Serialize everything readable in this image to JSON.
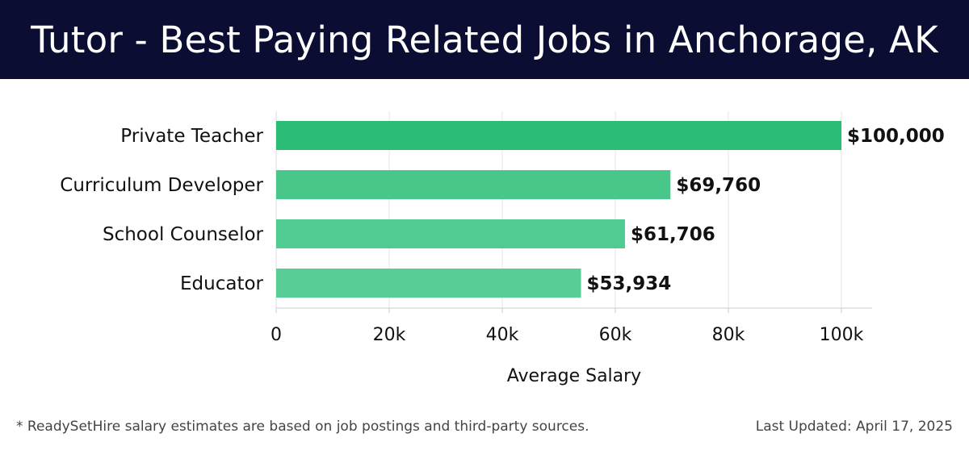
{
  "header": {
    "title": "Tutor - Best Paying Related Jobs in Anchorage, AK",
    "background": "#0c0d33"
  },
  "chart_data": {
    "type": "bar",
    "orientation": "horizontal",
    "categories": [
      "Private Teacher",
      "Curriculum Developer",
      "School Counselor",
      "Educator"
    ],
    "values": [
      100000,
      69760,
      61706,
      53934
    ],
    "value_labels": [
      "$100,000",
      "$69,760",
      "$61,706",
      "$53,934"
    ],
    "bar_colors": [
      "#2bbd78",
      "#49c78b",
      "#50cb91",
      "#5acd97"
    ],
    "xlabel": "Average Salary",
    "ylabel": "",
    "xlim": [
      0,
      105000
    ],
    "xticks": [
      0,
      20000,
      40000,
      60000,
      80000,
      100000
    ],
    "xtick_labels": [
      "0",
      "20k",
      "40k",
      "60k",
      "80k",
      "100k"
    ],
    "grid": "vertical"
  },
  "footer": {
    "note": "* ReadySetHire salary estimates are based on job postings and third-party sources.",
    "updated": "Last Updated: April 17, 2025"
  }
}
